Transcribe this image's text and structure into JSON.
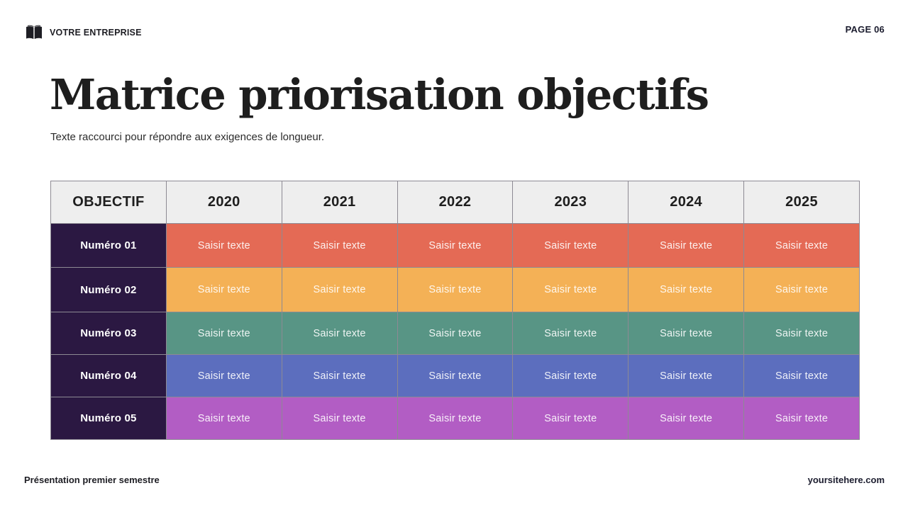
{
  "header": {
    "brand_icon": "open-book-icon",
    "brand_label": "VOTRE ENTREPRISE",
    "page_label": "PAGE 06"
  },
  "title": "Matrice priorisation objectifs",
  "subtitle": "Texte raccourci pour répondre aux exigences de longueur.",
  "table": {
    "columns": [
      "OBJECTIF",
      "2020",
      "2021",
      "2022",
      "2023",
      "2024",
      "2025"
    ],
    "rows": [
      {
        "label": "Numéro 01",
        "color": "#e46a55",
        "cells": [
          "Saisir texte",
          "Saisir texte",
          "Saisir texte",
          "Saisir texte",
          "Saisir texte",
          "Saisir texte"
        ]
      },
      {
        "label": "Numéro 02",
        "color": "#f4b156",
        "cells": [
          "Saisir texte",
          "Saisir texte",
          "Saisir texte",
          "Saisir texte",
          "Saisir texte",
          "Saisir texte"
        ]
      },
      {
        "label": "Numéro 03",
        "color": "#589585",
        "cells": [
          "Saisir texte",
          "Saisir texte",
          "Saisir texte",
          "Saisir texte",
          "Saisir texte",
          "Saisir texte"
        ]
      },
      {
        "label": "Numéro 04",
        "color": "#5c6ebe",
        "cells": [
          "Saisir texte",
          "Saisir texte",
          "Saisir texte",
          "Saisir texte",
          "Saisir texte",
          "Saisir texte"
        ]
      },
      {
        "label": "Numéro 05",
        "color": "#b25dc4",
        "cells": [
          "Saisir texte",
          "Saisir texte",
          "Saisir texte",
          "Saisir texte",
          "Saisir texte",
          "Saisir texte"
        ]
      }
    ],
    "objective_color": "#2b1842",
    "header_bg": "#eeeeee"
  },
  "footer": {
    "left": "Présentation premier semestre",
    "right": "yoursitehere.com"
  }
}
